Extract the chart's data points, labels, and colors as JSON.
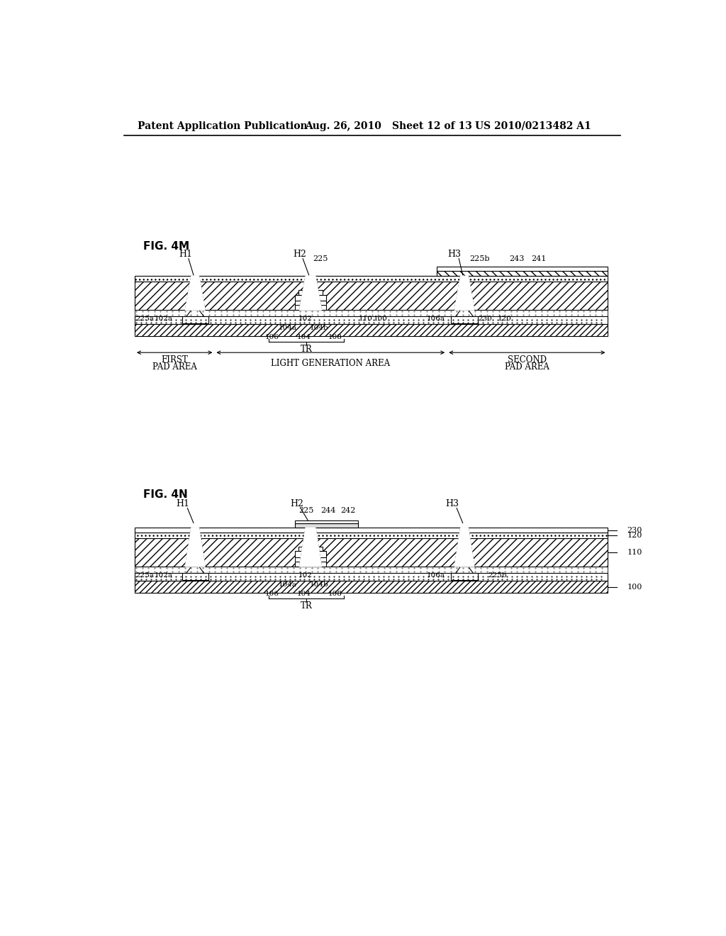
{
  "bg_color": "#ffffff",
  "header_text": "Patent Application Publication",
  "header_date": "Aug. 26, 2010",
  "header_sheet": "Sheet 12 of 13",
  "header_patent": "US 2010/0213482 A1",
  "fig4m_label": "FIG. 4M",
  "fig4n_label": "FIG. 4N"
}
